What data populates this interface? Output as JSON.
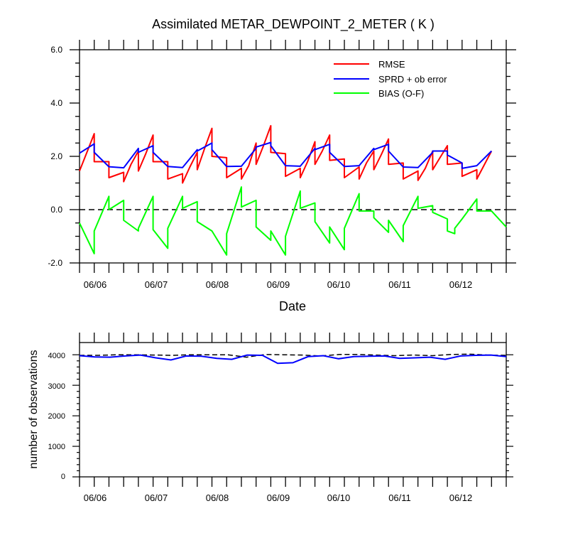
{
  "chart_data": [
    {
      "type": "line",
      "title": "Assimilated METAR_DEWPOINT_2_METER ( K )",
      "xlabel": "Date",
      "ylabel": "",
      "ylim": [
        -2.0,
        6.0
      ],
      "y_ticks": [
        "-2.0",
        "0.0",
        "2.0",
        "4.0",
        "6.0"
      ],
      "x_tick_labels": [
        "06/06",
        "06/07",
        "06/08",
        "06/09",
        "06/10",
        "06/11",
        "06/12"
      ],
      "legend_position": "top-right",
      "reference_line": 0.0,
      "grid": false,
      "series": [
        {
          "name": "RMSE",
          "color": "#ff0000",
          "points": [
            [
              0,
              1.45
            ],
            [
              0.25,
              2.15
            ],
            [
              0.5,
              2.85
            ],
            [
              0.5,
              1.8
            ],
            [
              1,
              1.8
            ],
            [
              1,
              1.2
            ],
            [
              1.5,
              1.4
            ],
            [
              1.5,
              1.05
            ],
            [
              1.75,
              1.7
            ],
            [
              2,
              2.2
            ],
            [
              2,
              1.45
            ],
            [
              2.25,
              2.1
            ],
            [
              2.5,
              2.8
            ],
            [
              2.5,
              1.8
            ],
            [
              3,
              1.8
            ],
            [
              3,
              1.15
            ],
            [
              3.5,
              1.35
            ],
            [
              3.5,
              1.0
            ],
            [
              3.75,
              1.6
            ],
            [
              4,
              2.15
            ],
            [
              4,
              1.5
            ],
            [
              4.25,
              2.3
            ],
            [
              4.5,
              3.05
            ],
            [
              4.5,
              2.0
            ],
            [
              5,
              1.95
            ],
            [
              5,
              1.2
            ],
            [
              5.5,
              1.55
            ],
            [
              5.5,
              1.15
            ],
            [
              5.75,
              1.65
            ],
            [
              6,
              2.5
            ],
            [
              6,
              1.7
            ],
            [
              6.25,
              2.4
            ],
            [
              6.5,
              3.15
            ],
            [
              6.5,
              2.15
            ],
            [
              7,
              2.1
            ],
            [
              7,
              1.25
            ],
            [
              7.5,
              1.55
            ],
            [
              7.5,
              1.2
            ],
            [
              7.75,
              1.8
            ],
            [
              8,
              2.55
            ],
            [
              8,
              1.7
            ],
            [
              8.25,
              2.2
            ],
            [
              8.5,
              2.8
            ],
            [
              8.5,
              1.85
            ],
            [
              9,
              1.9
            ],
            [
              9,
              1.2
            ],
            [
              9.5,
              1.6
            ],
            [
              9.5,
              1.15
            ],
            [
              9.75,
              1.75
            ],
            [
              10,
              2.2
            ],
            [
              10,
              1.5
            ],
            [
              10.25,
              2.05
            ],
            [
              10.5,
              2.65
            ],
            [
              10.5,
              1.7
            ],
            [
              11,
              1.75
            ],
            [
              11,
              1.15
            ],
            [
              11.5,
              1.45
            ],
            [
              11.5,
              1.1
            ],
            [
              11.75,
              1.55
            ],
            [
              12,
              2.2
            ],
            [
              12,
              1.5
            ],
            [
              12.25,
              1.95
            ],
            [
              12.5,
              2.4
            ],
            [
              12.5,
              1.7
            ],
            [
              13,
              1.75
            ],
            [
              13,
              1.25
            ],
            [
              13.5,
              1.5
            ],
            [
              13.5,
              1.15
            ],
            [
              14,
              2.2
            ]
          ]
        },
        {
          "name": "SPRD + ob error",
          "color": "#0000ff",
          "points": [
            [
              0,
              2.12
            ],
            [
              0.5,
              2.47
            ],
            [
              0.5,
              2.15
            ],
            [
              1,
              1.61
            ],
            [
              1.5,
              1.57
            ],
            [
              2,
              2.3
            ],
            [
              2,
              2.15
            ],
            [
              2.5,
              2.4
            ],
            [
              2.5,
              2.15
            ],
            [
              3,
              1.62
            ],
            [
              3.5,
              1.58
            ],
            [
              4,
              2.25
            ],
            [
              4,
              2.2
            ],
            [
              4.5,
              2.5
            ],
            [
              4.5,
              2.25
            ],
            [
              5,
              1.62
            ],
            [
              5.5,
              1.63
            ],
            [
              6,
              2.3
            ],
            [
              6,
              2.35
            ],
            [
              6.5,
              2.52
            ],
            [
              6.5,
              2.4
            ],
            [
              7,
              1.65
            ],
            [
              7.5,
              1.63
            ],
            [
              8,
              2.3
            ],
            [
              8,
              2.25
            ],
            [
              8.5,
              2.45
            ],
            [
              8.5,
              2.15
            ],
            [
              9,
              1.62
            ],
            [
              9.5,
              1.65
            ],
            [
              10,
              2.3
            ],
            [
              10,
              2.25
            ],
            [
              10.5,
              2.45
            ],
            [
              10.5,
              2.2
            ],
            [
              11,
              1.6
            ],
            [
              11.5,
              1.58
            ],
            [
              12,
              2.15
            ],
            [
              12,
              2.2
            ],
            [
              12.5,
              2.2
            ],
            [
              12.5,
              2.05
            ],
            [
              13,
              1.75
            ],
            [
              13,
              1.55
            ],
            [
              13.5,
              1.65
            ],
            [
              14,
              2.2
            ]
          ]
        },
        {
          "name": "BIAS (O-F)",
          "color": "#00ff00",
          "points": [
            [
              0,
              -0.5
            ],
            [
              0.5,
              -1.65
            ],
            [
              0.5,
              -0.8
            ],
            [
              1,
              0.5
            ],
            [
              1,
              0.0
            ],
            [
              1.5,
              0.35
            ],
            [
              1.5,
              -0.4
            ],
            [
              2,
              -0.8
            ],
            [
              2,
              -0.7
            ],
            [
              2.5,
              0.5
            ],
            [
              2.5,
              -0.75
            ],
            [
              3,
              -1.45
            ],
            [
              3,
              -0.7
            ],
            [
              3.5,
              0.5
            ],
            [
              3.5,
              0.05
            ],
            [
              4,
              0.3
            ],
            [
              4,
              -0.45
            ],
            [
              4.5,
              -0.8
            ],
            [
              4.5,
              -0.8
            ],
            [
              5,
              -1.7
            ],
            [
              5,
              -0.9
            ],
            [
              5.5,
              0.85
            ],
            [
              5.5,
              0.1
            ],
            [
              6,
              0.35
            ],
            [
              6,
              -0.65
            ],
            [
              6.5,
              -1.15
            ],
            [
              6.5,
              -0.8
            ],
            [
              7,
              -1.7
            ],
            [
              7,
              -1.0
            ],
            [
              7.5,
              0.7
            ],
            [
              7.5,
              0.05
            ],
            [
              8,
              0.25
            ],
            [
              8,
              -0.45
            ],
            [
              8.5,
              -1.25
            ],
            [
              8.5,
              -0.65
            ],
            [
              9,
              -1.5
            ],
            [
              9,
              -0.7
            ],
            [
              9.5,
              0.6
            ],
            [
              9.5,
              -0.05
            ],
            [
              10,
              -0.05
            ],
            [
              10,
              -0.3
            ],
            [
              10.5,
              -0.85
            ],
            [
              10.5,
              -0.4
            ],
            [
              11,
              -1.2
            ],
            [
              11,
              -0.6
            ],
            [
              11.5,
              0.5
            ],
            [
              11.5,
              0.05
            ],
            [
              12,
              0.15
            ],
            [
              12,
              -0.1
            ],
            [
              12.5,
              -0.35
            ],
            [
              12.5,
              -0.8
            ],
            [
              12.75,
              -0.9
            ],
            [
              12.75,
              -0.7
            ],
            [
              13,
              -0.35
            ],
            [
              13.5,
              0.4
            ],
            [
              13.5,
              -0.05
            ],
            [
              14,
              -0.05
            ],
            [
              14.5,
              -0.65
            ]
          ]
        }
      ]
    },
    {
      "type": "line",
      "title": "",
      "xlabel": "",
      "ylabel": "number of observations",
      "ylim": [
        0,
        4400
      ],
      "y_ticks": [
        "0",
        "1000",
        "2000",
        "3000",
        "4000"
      ],
      "x_tick_labels": [
        "06/06",
        "06/07",
        "06/08",
        "06/09",
        "06/10",
        "06/11",
        "06/12"
      ],
      "grid": false,
      "series": [
        {
          "color": "#000000",
          "dashed": true,
          "points": [
            [
              0,
              3980
            ],
            [
              1,
              3980
            ],
            [
              2,
              4000
            ],
            [
              3,
              4000
            ],
            [
              4,
              3990
            ],
            [
              5,
              3980
            ],
            [
              6,
              4000
            ],
            [
              7,
              4000
            ],
            [
              8,
              4000
            ],
            [
              9,
              3920
            ],
            [
              10,
              4010
            ],
            [
              11,
              4000
            ],
            [
              12,
              3990
            ],
            [
              13,
              3960
            ],
            [
              14,
              4010
            ],
            [
              15,
              4010
            ],
            [
              16,
              3990
            ],
            [
              17,
              3970
            ],
            [
              18,
              3990
            ],
            [
              19,
              3970
            ],
            [
              20,
              4010
            ],
            [
              21,
              4020
            ],
            [
              22,
              3990
            ],
            [
              23,
              3980
            ]
          ]
        },
        {
          "color": "#0000ff",
          "dashed": false,
          "points": [
            [
              0,
              3970
            ],
            [
              1,
              3930
            ],
            [
              2,
              3920
            ],
            [
              3,
              3960
            ],
            [
              4,
              3990
            ],
            [
              5,
              3900
            ],
            [
              6,
              3830
            ],
            [
              7,
              3960
            ],
            [
              8,
              3950
            ],
            [
              9,
              3880
            ],
            [
              10,
              3850
            ],
            [
              11,
              3990
            ],
            [
              12,
              3980
            ],
            [
              13,
              3720
            ],
            [
              14,
              3740
            ],
            [
              15,
              3940
            ],
            [
              16,
              3970
            ],
            [
              17,
              3870
            ],
            [
              18,
              3940
            ],
            [
              19,
              3950
            ],
            [
              20,
              3960
            ],
            [
              21,
              3880
            ],
            [
              22,
              3900
            ],
            [
              23,
              3920
            ],
            [
              24,
              3850
            ],
            [
              25,
              3960
            ],
            [
              26,
              3980
            ],
            [
              27,
              3990
            ],
            [
              28,
              3940
            ]
          ]
        }
      ]
    }
  ]
}
